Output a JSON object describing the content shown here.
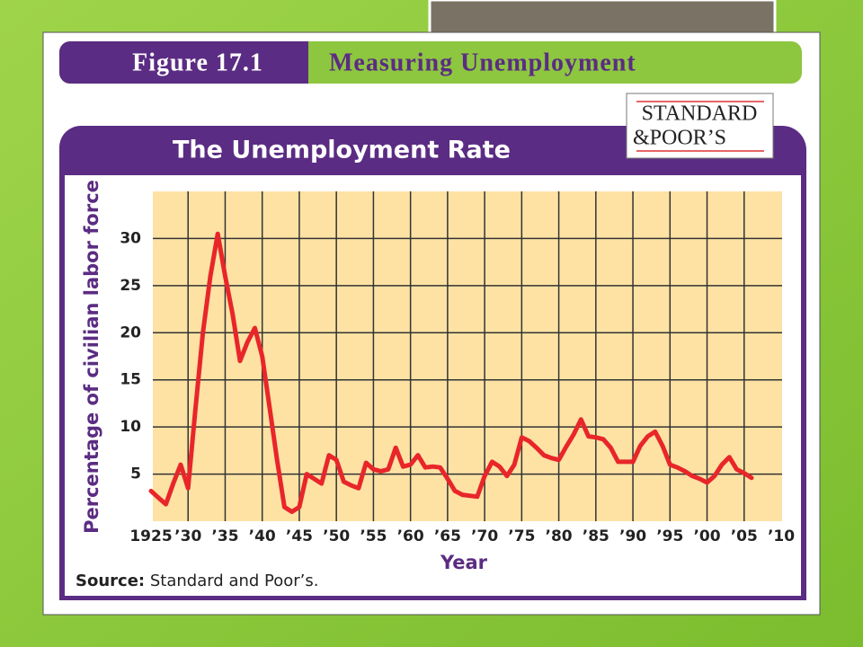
{
  "slide": {
    "figure": "Figure 17.1",
    "heading": "Measuring Unemployment",
    "logo": [
      "STANDARD",
      "&POOR’S"
    ]
  },
  "chart_data": {
    "type": "line",
    "title": "The Unemployment Rate",
    "xlabel": "Year",
    "ylabel": "Percentage of civilian labor force",
    "source_label": "Source:",
    "source_text": "Standard and Poor’s.",
    "color": "#e8262a",
    "grid": true,
    "xlim": [
      1925,
      2010
    ],
    "ylim": [
      0,
      35
    ],
    "xticks": [
      1925,
      {
        "value": 1930,
        "label": "’30"
      },
      {
        "value": 1935,
        "label": "’35"
      },
      {
        "value": 1940,
        "label": "’40"
      },
      {
        "value": 1945,
        "label": "’45"
      },
      {
        "value": 1950,
        "label": "’50"
      },
      {
        "value": 1955,
        "label": "’55"
      },
      {
        "value": 1960,
        "label": "’60"
      },
      {
        "value": 1965,
        "label": "’65"
      },
      {
        "value": 1970,
        "label": "’70"
      },
      {
        "value": 1975,
        "label": "’75"
      },
      {
        "value": 1980,
        "label": "’80"
      },
      {
        "value": 1985,
        "label": "’85"
      },
      {
        "value": 1990,
        "label": "’90"
      },
      {
        "value": 1995,
        "label": "’95"
      },
      {
        "value": 2000,
        "label": "’00"
      },
      {
        "value": 2005,
        "label": "’05"
      },
      {
        "value": 2010,
        "label": "’10"
      }
    ],
    "yticks": [
      5,
      10,
      15,
      20,
      25,
      30
    ],
    "x": [
      1925,
      1926,
      1927,
      1928,
      1929,
      1930,
      1931,
      1932,
      1933,
      1934,
      1935,
      1936,
      1937,
      1938,
      1939,
      1940,
      1941,
      1942,
      1943,
      1944,
      1945,
      1946,
      1947,
      1948,
      1949,
      1950,
      1951,
      1952,
      1953,
      1954,
      1955,
      1956,
      1957,
      1958,
      1959,
      1960,
      1961,
      1962,
      1963,
      1964,
      1965,
      1966,
      1967,
      1968,
      1969,
      1970,
      1971,
      1972,
      1973,
      1974,
      1975,
      1976,
      1977,
      1978,
      1979,
      1980,
      1981,
      1982,
      1983,
      1984,
      1985,
      1986,
      1987,
      1988,
      1989,
      1990,
      1991,
      1992,
      1993,
      1994,
      1995,
      1996,
      1997,
      1998,
      1999,
      2000,
      2001,
      2002,
      2003,
      2004,
      2005,
      2006
    ],
    "values": [
      3.2,
      2.5,
      1.8,
      4,
      6,
      3.5,
      12,
      20,
      26,
      30.5,
      26,
      22,
      17,
      19,
      20.5,
      17.5,
      12,
      6.5,
      1.5,
      1,
      1.5,
      5,
      4.5,
      4,
      7,
      6.5,
      4.2,
      3.8,
      3.5,
      6.2,
      5.5,
      5.3,
      5.5,
      7.8,
      5.8,
      6,
      7,
      5.7,
      5.8,
      5.7,
      4.5,
      3.2,
      2.8,
      2.7,
      2.6,
      4.8,
      6.3,
      5.8,
      4.8,
      6,
      8.9,
      8.5,
      7.8,
      7,
      6.7,
      6.5,
      7.9,
      9.2,
      10.8,
      9,
      8.9,
      8.7,
      7.8,
      6.3,
      6.3,
      6.3,
      8,
      9,
      9.5,
      8,
      6,
      5.7,
      5.3,
      4.8,
      4.5,
      4.1,
      4.8,
      6,
      6.8,
      5.5,
      5.1,
      4.6
    ]
  }
}
